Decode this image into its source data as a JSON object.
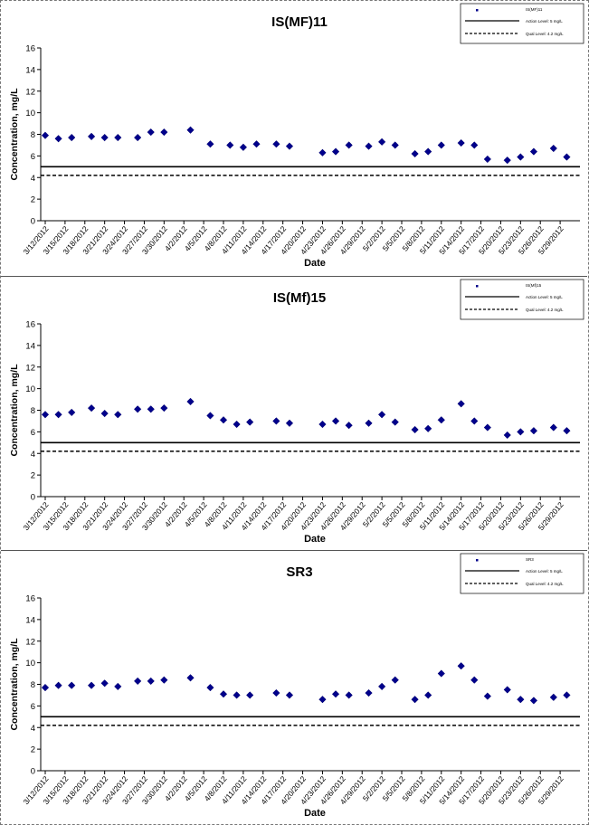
{
  "chart_data": [
    {
      "type": "scatter",
      "title": "IS(MF)11",
      "xlabel": "Date",
      "ylabel": "Concentration, mg/L",
      "ylim": [
        0,
        16
      ],
      "yticks": [
        0,
        2,
        4,
        6,
        8,
        10,
        12,
        14,
        16
      ],
      "x_ticks": [
        "3/12/2012",
        "3/15/2012",
        "3/18/2012",
        "3/21/2012",
        "3/24/2012",
        "3/27/2012",
        "3/30/2012",
        "4/2/2012",
        "4/5/2012",
        "4/8/2012",
        "4/11/2012",
        "4/14/2012",
        "4/17/2012",
        "4/20/2012",
        "4/23/2012",
        "4/26/2012",
        "4/29/2012",
        "5/2/2012",
        "5/5/2012",
        "5/8/2012",
        "5/11/2012",
        "5/14/2012",
        "5/17/2012",
        "5/20/2012",
        "5/23/2012",
        "5/26/2012",
        "5/29/2012"
      ],
      "series": [
        {
          "name": "IS(MF)11",
          "color": "#00008b",
          "marker": "diamond",
          "x": [
            "3/12/2012",
            "3/14/2012",
            "3/16/2012",
            "3/19/2012",
            "3/21/2012",
            "3/23/2012",
            "3/26/2012",
            "3/28/2012",
            "3/30/2012",
            "4/3/2012",
            "4/6/2012",
            "4/9/2012",
            "4/11/2012",
            "4/13/2012",
            "4/16/2012",
            "4/18/2012",
            "4/23/2012",
            "4/25/2012",
            "4/27/2012",
            "4/30/2012",
            "5/2/2012",
            "5/4/2012",
            "5/7/2012",
            "5/9/2012",
            "5/11/2012",
            "5/14/2012",
            "5/16/2012",
            "5/18/2012",
            "5/21/2012",
            "5/23/2012",
            "5/25/2012",
            "5/28/2012",
            "5/30/2012"
          ],
          "y": [
            7.9,
            7.6,
            7.7,
            7.8,
            7.7,
            7.7,
            7.7,
            8.2,
            8.2,
            8.4,
            7.1,
            7.0,
            6.8,
            7.1,
            7.1,
            6.9,
            6.3,
            6.4,
            7.0,
            6.9,
            7.3,
            7.0,
            6.2,
            6.4,
            7.0,
            7.2,
            7.0,
            5.7,
            5.6,
            5.9,
            6.4,
            6.7,
            5.9
          ]
        },
        {
          "name": "Action Level: 5 mg/L",
          "style": "solid",
          "y": 5
        },
        {
          "name": "Qual Level: 4.2 mg/L",
          "style": "dashed",
          "y": 4.2
        }
      ],
      "legend": [
        "IS(MF)11",
        "Action Level: 5 mg/L",
        "Qual Level: 4.2 mg/L"
      ],
      "legend_position": "top-right",
      "grid": false
    },
    {
      "type": "scatter",
      "title": "IS(Mf)15",
      "xlabel": "Date",
      "ylabel": "Concentration, mg/L",
      "ylim": [
        0,
        16
      ],
      "yticks": [
        0,
        2,
        4,
        6,
        8,
        10,
        12,
        14,
        16
      ],
      "x_ticks": [
        "3/12/2012",
        "3/15/2012",
        "3/18/2012",
        "3/21/2012",
        "3/24/2012",
        "3/27/2012",
        "3/30/2012",
        "4/2/2012",
        "4/5/2012",
        "4/8/2012",
        "4/11/2012",
        "4/14/2012",
        "4/17/2012",
        "4/20/2012",
        "4/23/2012",
        "4/26/2012",
        "4/29/2012",
        "5/2/2012",
        "5/5/2012",
        "5/8/2012",
        "5/11/2012",
        "5/14/2012",
        "5/17/2012",
        "5/20/2012",
        "5/23/2012",
        "5/26/2012",
        "5/29/2012"
      ],
      "series": [
        {
          "name": "IS(Mf)15",
          "color": "#00008b",
          "marker": "diamond",
          "x": [
            "3/12/2012",
            "3/14/2012",
            "3/16/2012",
            "3/19/2012",
            "3/21/2012",
            "3/23/2012",
            "3/26/2012",
            "3/28/2012",
            "3/30/2012",
            "4/3/2012",
            "4/6/2012",
            "4/8/2012",
            "4/10/2012",
            "4/12/2012",
            "4/16/2012",
            "4/18/2012",
            "4/23/2012",
            "4/25/2012",
            "4/27/2012",
            "4/30/2012",
            "5/2/2012",
            "5/4/2012",
            "5/7/2012",
            "5/9/2012",
            "5/11/2012",
            "5/14/2012",
            "5/16/2012",
            "5/18/2012",
            "5/21/2012",
            "5/23/2012",
            "5/25/2012",
            "5/28/2012",
            "5/30/2012"
          ],
          "y": [
            7.6,
            7.6,
            7.8,
            8.2,
            7.7,
            7.6,
            8.1,
            8.1,
            8.2,
            8.8,
            7.5,
            7.1,
            6.7,
            6.9,
            7.0,
            6.8,
            6.7,
            7.0,
            6.6,
            6.8,
            7.6,
            6.9,
            6.2,
            6.3,
            7.1,
            8.6,
            7.0,
            6.4,
            5.7,
            6.0,
            6.1,
            6.4,
            6.1
          ]
        },
        {
          "name": "Action Level: 5 mg/L",
          "style": "solid",
          "y": 5
        },
        {
          "name": "Qual Level: 4.2 mg/L",
          "style": "dashed",
          "y": 4.2
        }
      ],
      "legend": [
        "IS(Mf)15",
        "Action Level: 5 mg/L",
        "Qual Level: 4.2 mg/L"
      ],
      "legend_position": "top-right",
      "grid": false
    },
    {
      "type": "scatter",
      "title": "SR3",
      "xlabel": "Date",
      "ylabel": "Concentration, mg/L",
      "ylim": [
        0,
        16
      ],
      "yticks": [
        0,
        2,
        4,
        6,
        8,
        10,
        12,
        14,
        16
      ],
      "x_ticks": [
        "3/12/2012",
        "3/15/2012",
        "3/18/2012",
        "3/21/2012",
        "3/24/2012",
        "3/27/2012",
        "3/30/2012",
        "4/2/2012",
        "4/5/2012",
        "4/8/2012",
        "4/11/2012",
        "4/14/2012",
        "4/17/2012",
        "4/20/2012",
        "4/23/2012",
        "4/26/2012",
        "4/29/2012",
        "5/2/2012",
        "5/5/2012",
        "5/8/2012",
        "5/11/2012",
        "5/14/2012",
        "5/17/2012",
        "5/20/2012",
        "5/23/2012",
        "5/26/2012",
        "5/29/2012"
      ],
      "series": [
        {
          "name": "SR3",
          "color": "#00008b",
          "marker": "diamond",
          "x": [
            "3/12/2012",
            "3/14/2012",
            "3/16/2012",
            "3/19/2012",
            "3/21/2012",
            "3/23/2012",
            "3/26/2012",
            "3/28/2012",
            "3/30/2012",
            "4/3/2012",
            "4/6/2012",
            "4/8/2012",
            "4/10/2012",
            "4/12/2012",
            "4/16/2012",
            "4/18/2012",
            "4/23/2012",
            "4/25/2012",
            "4/27/2012",
            "4/30/2012",
            "5/2/2012",
            "5/4/2012",
            "5/7/2012",
            "5/9/2012",
            "5/11/2012",
            "5/14/2012",
            "5/16/2012",
            "5/18/2012",
            "5/21/2012",
            "5/23/2012",
            "5/25/2012",
            "5/28/2012",
            "5/30/2012"
          ],
          "y": [
            7.7,
            7.9,
            7.9,
            7.9,
            8.1,
            7.8,
            8.3,
            8.3,
            8.4,
            8.6,
            7.7,
            7.1,
            7.0,
            7.0,
            7.2,
            7.0,
            6.6,
            7.1,
            7.0,
            7.2,
            7.8,
            8.4,
            6.6,
            7.0,
            9.0,
            9.7,
            8.4,
            6.9,
            7.5,
            6.6,
            6.5,
            6.8,
            7.0
          ]
        },
        {
          "name": "Action Level: 5 mg/L",
          "style": "solid",
          "y": 5
        },
        {
          "name": "Qual Level: 4.2 mg/L",
          "style": "dashed",
          "y": 4.2
        }
      ],
      "legend": [
        "SR3",
        "Action Level: 5 mg/L",
        "Qual Level: 4.2 mg/L"
      ],
      "legend_position": "top-right",
      "grid": false
    }
  ]
}
